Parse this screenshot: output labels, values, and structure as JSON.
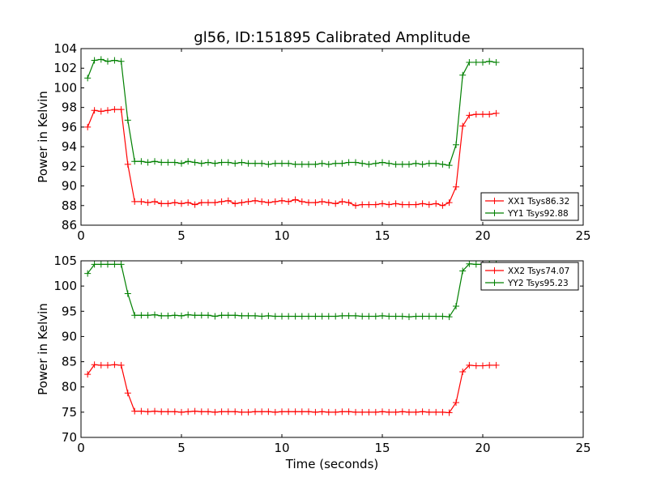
{
  "title": "gl56, ID:151895 Calibrated Amplitude",
  "xlabel": "Time (seconds)",
  "colors": {
    "XX": "#ff0000",
    "YY": "#008000"
  },
  "chart_data": [
    {
      "type": "line",
      "ylabel": "Power in Kelvin",
      "xlim": [
        0,
        25
      ],
      "ylim": [
        86,
        104
      ],
      "xticks": [
        0,
        5,
        10,
        15,
        20,
        25
      ],
      "yticks": [
        86,
        88,
        90,
        92,
        94,
        96,
        98,
        100,
        102,
        104
      ],
      "legend_position": "lower-right",
      "x": [
        0.33,
        0.67,
        1.0,
        1.33,
        1.67,
        2.0,
        2.33,
        2.67,
        3.0,
        3.33,
        3.67,
        4.0,
        4.33,
        4.67,
        5.0,
        5.33,
        5.67,
        6.0,
        6.33,
        6.67,
        7.0,
        7.33,
        7.67,
        8.0,
        8.33,
        8.67,
        9.0,
        9.33,
        9.67,
        10.0,
        10.33,
        10.67,
        11.0,
        11.33,
        11.67,
        12.0,
        12.33,
        12.67,
        13.0,
        13.33,
        13.67,
        14.0,
        14.33,
        14.67,
        15.0,
        15.33,
        15.67,
        16.0,
        16.33,
        16.67,
        17.0,
        17.33,
        17.67,
        18.0,
        18.33,
        18.67,
        19.0,
        19.33,
        19.67,
        20.0,
        20.33,
        20.67
      ],
      "series": [
        {
          "name": "XX1 Tsys86.32",
          "color_key": "XX",
          "values": [
            96.0,
            97.7,
            97.6,
            97.7,
            97.8,
            97.8,
            92.2,
            88.4,
            88.4,
            88.3,
            88.4,
            88.2,
            88.2,
            88.3,
            88.2,
            88.3,
            88.1,
            88.3,
            88.3,
            88.3,
            88.4,
            88.5,
            88.2,
            88.3,
            88.4,
            88.5,
            88.4,
            88.3,
            88.4,
            88.5,
            88.4,
            88.6,
            88.4,
            88.3,
            88.3,
            88.4,
            88.3,
            88.2,
            88.4,
            88.3,
            88.0,
            88.1,
            88.1,
            88.1,
            88.2,
            88.1,
            88.2,
            88.1,
            88.1,
            88.1,
            88.2,
            88.1,
            88.2,
            88.0,
            88.3,
            89.9,
            96.1,
            97.2,
            97.3,
            97.3,
            97.3,
            97.4
          ]
        },
        {
          "name": "YY1 Tsys92.88",
          "color_key": "YY",
          "values": [
            101.0,
            102.8,
            102.9,
            102.7,
            102.8,
            102.7,
            96.7,
            92.5,
            92.5,
            92.4,
            92.5,
            92.4,
            92.4,
            92.4,
            92.3,
            92.5,
            92.4,
            92.3,
            92.4,
            92.3,
            92.4,
            92.4,
            92.3,
            92.4,
            92.3,
            92.3,
            92.3,
            92.2,
            92.3,
            92.3,
            92.3,
            92.2,
            92.2,
            92.2,
            92.2,
            92.3,
            92.2,
            92.3,
            92.3,
            92.4,
            92.4,
            92.3,
            92.2,
            92.3,
            92.4,
            92.3,
            92.2,
            92.2,
            92.2,
            92.3,
            92.2,
            92.3,
            92.3,
            92.2,
            92.1,
            94.2,
            101.3,
            102.6,
            102.6,
            102.6,
            102.7,
            102.6
          ]
        }
      ]
    },
    {
      "type": "line",
      "ylabel": "Power in Kelvin",
      "xlabel": "Time (seconds)",
      "xlim": [
        0,
        25
      ],
      "ylim": [
        70,
        105
      ],
      "xticks": [
        0,
        5,
        10,
        15,
        20,
        25
      ],
      "yticks": [
        70,
        75,
        80,
        85,
        90,
        95,
        100,
        105
      ],
      "legend_position": "upper-right",
      "x": [
        0.33,
        0.67,
        1.0,
        1.33,
        1.67,
        2.0,
        2.33,
        2.67,
        3.0,
        3.33,
        3.67,
        4.0,
        4.33,
        4.67,
        5.0,
        5.33,
        5.67,
        6.0,
        6.33,
        6.67,
        7.0,
        7.33,
        7.67,
        8.0,
        8.33,
        8.67,
        9.0,
        9.33,
        9.67,
        10.0,
        10.33,
        10.67,
        11.0,
        11.33,
        11.67,
        12.0,
        12.33,
        12.67,
        13.0,
        13.33,
        13.67,
        14.0,
        14.33,
        14.67,
        15.0,
        15.33,
        15.67,
        16.0,
        16.33,
        16.67,
        17.0,
        17.33,
        17.67,
        18.0,
        18.33,
        18.67,
        19.0,
        19.33,
        19.67,
        20.0,
        20.33,
        20.67
      ],
      "series": [
        {
          "name": "XX2 Tsys74.07",
          "color_key": "XX",
          "values": [
            82.5,
            84.4,
            84.3,
            84.3,
            84.4,
            84.3,
            78.8,
            75.2,
            75.2,
            75.1,
            75.2,
            75.1,
            75.1,
            75.1,
            75.0,
            75.1,
            75.2,
            75.1,
            75.1,
            75.0,
            75.1,
            75.1,
            75.1,
            75.0,
            75.0,
            75.1,
            75.1,
            75.1,
            75.0,
            75.1,
            75.1,
            75.1,
            75.1,
            75.1,
            75.0,
            75.1,
            75.0,
            75.0,
            75.1,
            75.1,
            75.0,
            75.0,
            75.0,
            75.0,
            75.1,
            75.0,
            75.0,
            75.1,
            75.0,
            75.0,
            75.1,
            75.0,
            75.0,
            75.0,
            74.9,
            76.9,
            83.0,
            84.3,
            84.2,
            84.2,
            84.3,
            84.3
          ]
        },
        {
          "name": "YY2 Tsys95.23",
          "color_key": "YY",
          "values": [
            102.5,
            104.3,
            104.3,
            104.3,
            104.3,
            104.3,
            98.5,
            94.2,
            94.2,
            94.2,
            94.3,
            94.1,
            94.1,
            94.2,
            94.1,
            94.3,
            94.2,
            94.2,
            94.2,
            94.0,
            94.2,
            94.2,
            94.2,
            94.1,
            94.1,
            94.1,
            94.0,
            94.1,
            94.0,
            94.0,
            94.0,
            94.0,
            94.0,
            94.0,
            94.0,
            94.0,
            94.0,
            94.0,
            94.1,
            94.1,
            94.1,
            94.0,
            94.0,
            94.0,
            94.1,
            94.0,
            94.0,
            94.0,
            93.9,
            94.0,
            94.0,
            94.0,
            94.0,
            94.0,
            93.9,
            96.0,
            103.0,
            104.4,
            104.3,
            104.3,
            104.3,
            104.3
          ]
        }
      ]
    }
  ]
}
